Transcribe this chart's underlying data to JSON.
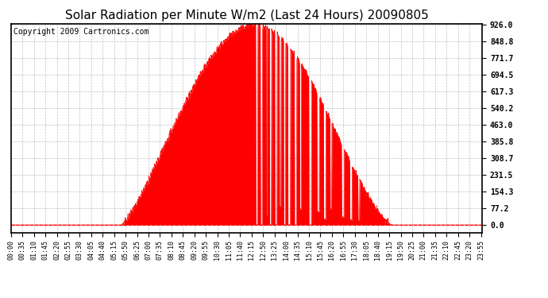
{
  "title": "Solar Radiation per Minute W/m2 (Last 24 Hours) 20090805",
  "copyright_text": "Copyright 2009 Cartronics.com",
  "ytick_labels": [
    "0.0",
    "77.2",
    "154.3",
    "231.5",
    "308.7",
    "385.8",
    "463.0",
    "540.2",
    "617.3",
    "694.5",
    "771.7",
    "848.8",
    "926.0"
  ],
  "ytick_values": [
    0.0,
    77.2,
    154.3,
    231.5,
    308.7,
    385.8,
    463.0,
    540.2,
    617.3,
    694.5,
    771.7,
    848.8,
    926.0
  ],
  "ymax": 926.0,
  "ymin": 0.0,
  "fill_color": "#FF0000",
  "background_color": "#FFFFFF",
  "plot_bg_color": "#FFFFFF",
  "grid_color": "#C0C0C0",
  "title_fontsize": 11,
  "copyright_fontsize": 7,
  "sunrise_min": 335,
  "sunset_min": 1165,
  "peak_min": 745
}
